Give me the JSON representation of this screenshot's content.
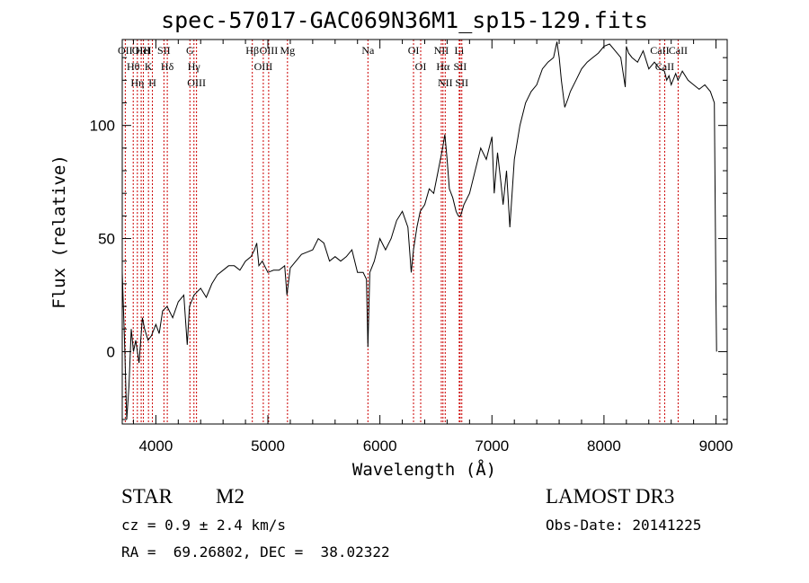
{
  "chart_data": {
    "type": "line",
    "title": "spec-57017-GAC069N36M1_sp15-129.fits",
    "xlabel": "Wavelength (Å)",
    "ylabel": "Flux (relative)",
    "xlim": [
      3700,
      9100
    ],
    "ylim": [
      -32,
      138
    ],
    "xticks": [
      4000,
      5000,
      6000,
      7000,
      8000,
      9000
    ],
    "yticks": [
      0,
      50,
      100
    ],
    "series": [
      {
        "name": "spectrum",
        "x": [
          3700,
          3720,
          3740,
          3760,
          3780,
          3800,
          3820,
          3850,
          3880,
          3900,
          3930,
          3960,
          4000,
          4030,
          4060,
          4100,
          4150,
          4200,
          4250,
          4280,
          4300,
          4340,
          4400,
          4450,
          4500,
          4550,
          4600,
          4650,
          4700,
          4750,
          4800,
          4850,
          4880,
          4900,
          4920,
          4950,
          5000,
          5050,
          5100,
          5150,
          5170,
          5200,
          5250,
          5300,
          5350,
          5400,
          5450,
          5500,
          5550,
          5600,
          5650,
          5700,
          5750,
          5800,
          5850,
          5880,
          5893,
          5910,
          5950,
          6000,
          6050,
          6100,
          6150,
          6200,
          6250,
          6280,
          6300,
          6330,
          6360,
          6400,
          6440,
          6480,
          6520,
          6560,
          6580,
          6600,
          6620,
          6650,
          6680,
          6700,
          6720,
          6750,
          6800,
          6850,
          6900,
          6950,
          7000,
          7020,
          7050,
          7080,
          7100,
          7130,
          7160,
          7200,
          7250,
          7300,
          7350,
          7400,
          7450,
          7500,
          7550,
          7580,
          7600,
          7620,
          7650,
          7680,
          7700,
          7750,
          7800,
          7850,
          7900,
          7950,
          8000,
          8050,
          8100,
          8150,
          8190,
          8200,
          8220,
          8250,
          8300,
          8350,
          8400,
          8450,
          8500,
          8540,
          8560,
          8580,
          8600,
          8640,
          8660,
          8700,
          8750,
          8800,
          8850,
          8900,
          8950,
          8985,
          9000,
          9005
        ],
        "y": [
          35,
          5,
          -30,
          -15,
          10,
          0,
          5,
          -5,
          15,
          10,
          5,
          7,
          12,
          8,
          18,
          20,
          15,
          22,
          25,
          3,
          20,
          25,
          28,
          24,
          30,
          34,
          36,
          38,
          38,
          36,
          40,
          42,
          45,
          48,
          38,
          40,
          35,
          36,
          36,
          38,
          25,
          37,
          40,
          43,
          44,
          45,
          50,
          48,
          40,
          42,
          40,
          42,
          45,
          35,
          35,
          32,
          2,
          35,
          40,
          50,
          45,
          50,
          58,
          62,
          55,
          35,
          45,
          55,
          62,
          65,
          72,
          70,
          80,
          90,
          96,
          85,
          72,
          68,
          62,
          60,
          60,
          65,
          70,
          80,
          90,
          85,
          95,
          70,
          88,
          75,
          65,
          80,
          55,
          85,
          100,
          110,
          115,
          118,
          125,
          128,
          130,
          137,
          130,
          120,
          108,
          112,
          115,
          120,
          125,
          128,
          130,
          132,
          135,
          136,
          133,
          130,
          117,
          135,
          132,
          130,
          128,
          133,
          125,
          128,
          125,
          124,
          120,
          122,
          118,
          123,
          120,
          124,
          120,
          118,
          116,
          118,
          115,
          110,
          24,
          0
        ],
        "color": "#000000"
      }
    ],
    "line_markers": [
      {
        "label": "Hθ",
        "x": 3798
      },
      {
        "label": "OII",
        "x": 3727
      },
      {
        "label": "OIII",
        "x": 3869
      },
      {
        "label": "K",
        "x": 3934
      },
      {
        "label": "HeI",
        "x": 3889
      },
      {
        "label": "Hη",
        "x": 3835
      },
      {
        "label": "SII",
        "x": 4072
      },
      {
        "label": "H",
        "x": 3969
      },
      {
        "label": "Hδ",
        "x": 4102
      },
      {
        "label": "OIII",
        "x": 4363
      },
      {
        "label": "Hγ",
        "x": 4340
      },
      {
        "label": "G",
        "x": 4304
      },
      {
        "label": "OIII",
        "x": 5007
      },
      {
        "label": "OIII",
        "x": 4959
      },
      {
        "label": "Hβ",
        "x": 4861
      },
      {
        "label": "Mg",
        "x": 5175
      },
      {
        "label": "Na",
        "x": 5893
      },
      {
        "label": "OI",
        "x": 6300
      },
      {
        "label": "OI",
        "x": 6364
      },
      {
        "label": "Hα",
        "x": 6563
      },
      {
        "label": "NII",
        "x": 6548
      },
      {
        "label": "NII",
        "x": 6583
      },
      {
        "label": "SII",
        "x": 6716
      },
      {
        "label": "Li",
        "x": 6708
      },
      {
        "label": "SII",
        "x": 6731
      },
      {
        "label": "CaII",
        "x": 8542
      },
      {
        "label": "CaII",
        "x": 8498
      },
      {
        "label": "CaII",
        "x": 8662
      }
    ],
    "marker_color": "#cc0000"
  },
  "info": {
    "class_label": "STAR",
    "subclass": "M2",
    "cz": "cz = 0.9 ± 2.4 km/s",
    "ra_dec": "RA =  69.26802, DEC =  38.02322",
    "survey": "LAMOST DR3",
    "obs_date": "Obs-Date: 20141225"
  }
}
